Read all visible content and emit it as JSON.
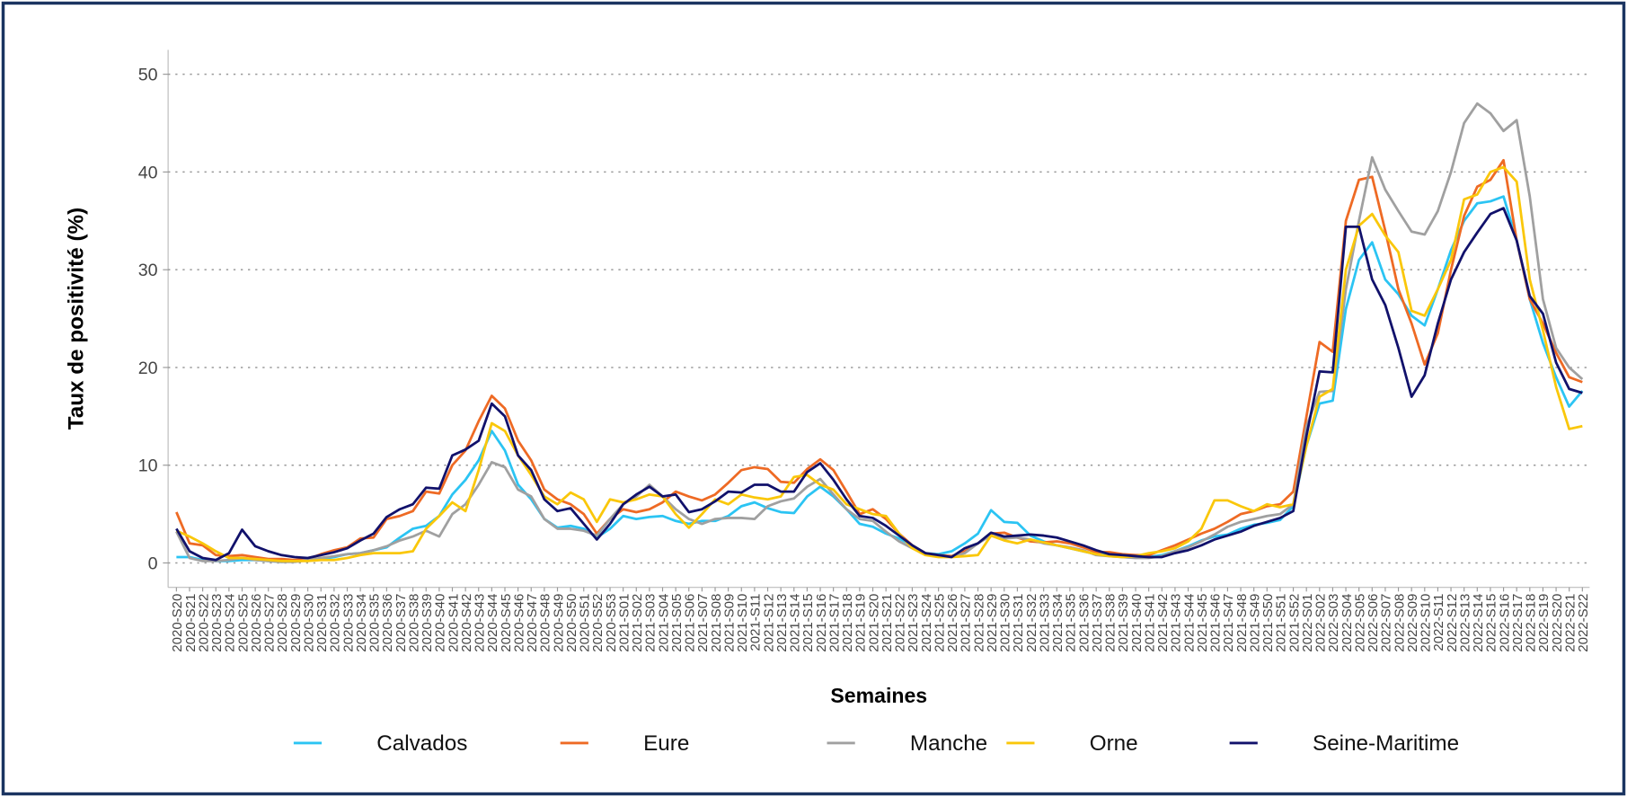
{
  "chart_data": {
    "type": "line",
    "y_label": "Taux de positivité (%)",
    "x_label": "Semaines",
    "categories": [
      "2020-S20",
      "2020-S21",
      "2020-S22",
      "2020-S23",
      "2020-S24",
      "2020-S25",
      "2020-S26",
      "2020-S27",
      "2020-S28",
      "2020-S29",
      "2020-S30",
      "2020-S31",
      "2020-S32",
      "2020-S33",
      "2020-S34",
      "2020-S35",
      "2020-S36",
      "2020-S37",
      "2020-S38",
      "2020-S39",
      "2020-S40",
      "2020-S41",
      "2020-S42",
      "2020-S43",
      "2020-S44",
      "2020-S45",
      "2020-S46",
      "2020-S47",
      "2020-S48",
      "2020-S49",
      "2020-S50",
      "2020-S51",
      "2020-S52",
      "2020-S53",
      "2021-S01",
      "2021-S02",
      "2021-S03",
      "2021-S04",
      "2021-S05",
      "2021-S06",
      "2021-S07",
      "2021-S08",
      "2021-S09",
      "2021-S10",
      "2021-S11",
      "2021-S12",
      "2021-S13",
      "2021-S14",
      "2021-S15",
      "2021-S16",
      "2021-S17",
      "2021-S18",
      "2021-S19",
      "2021-S20",
      "2021-S21",
      "2021-S22",
      "2021-S23",
      "2021-S24",
      "2021-S25",
      "2021-S26",
      "2021-S27",
      "2021-S28",
      "2021-S29",
      "2021-S30",
      "2021-S31",
      "2021-S32",
      "2021-S33",
      "2021-S34",
      "2021-S35",
      "2021-S36",
      "2021-S37",
      "2021-S38",
      "2021-S39",
      "2021-S40",
      "2021-S41",
      "2021-S42",
      "2021-S43",
      "2021-S44",
      "2021-S45",
      "2021-S46",
      "2021-S47",
      "2021-S48",
      "2021-S49",
      "2021-S50",
      "2021-S51",
      "2021-S52",
      "2022-S01",
      "2022-S02",
      "2022-S03",
      "2022-S04",
      "2022-S05",
      "2022-S06",
      "2022-S07",
      "2022-S08",
      "2022-S09",
      "2022-S10",
      "2022-S11",
      "2022-S12",
      "2022-S13",
      "2022-S14",
      "2022-S15",
      "2022-S16",
      "2022-S17",
      "2022-S18",
      "2022-S19",
      "2022-S20",
      "2022-S21",
      "2022-S22"
    ],
    "series": [
      {
        "name": "Calvados",
        "color": "#2bc4f3",
        "values": [
          0.6,
          0.6,
          0.3,
          0.2,
          0.2,
          0.3,
          0.3,
          0.2,
          0.1,
          0.2,
          0.3,
          0.4,
          0.6,
          0.9,
          1.0,
          1.3,
          1.6,
          2.6,
          3.5,
          3.8,
          4.8,
          7.0,
          8.5,
          10.5,
          13.5,
          11.5,
          8.0,
          6.5,
          4.5,
          3.6,
          3.8,
          3.5,
          2.6,
          3.5,
          4.8,
          4.5,
          4.7,
          4.8,
          4.3,
          4.0,
          4.3,
          4.3,
          4.8,
          5.8,
          6.2,
          5.6,
          5.2,
          5.1,
          6.8,
          7.8,
          6.8,
          5.5,
          4.0,
          3.7,
          3.0,
          2.5,
          1.8,
          1.0,
          0.9,
          1.2,
          2.0,
          3.0,
          5.4,
          4.2,
          4.1,
          2.8,
          2.2,
          1.8,
          1.5,
          1.2,
          0.9,
          0.8,
          0.7,
          0.6,
          0.6,
          0.8,
          1.2,
          1.7,
          2.3,
          2.7,
          2.9,
          3.5,
          3.9,
          4.1,
          4.4,
          5.8,
          12.0,
          16.3,
          16.6,
          26.0,
          31.0,
          32.8,
          29.0,
          27.5,
          25.3,
          24.3,
          28.0,
          32.0,
          35.0,
          36.8,
          37.0,
          37.5,
          33.0,
          27.0,
          22.5,
          19.0,
          16.0,
          17.6
        ]
      },
      {
        "name": "Eure",
        "color": "#ee6a24",
        "values": [
          5.2,
          2.0,
          1.8,
          0.8,
          0.7,
          0.8,
          0.6,
          0.4,
          0.4,
          0.3,
          0.4,
          0.9,
          1.3,
          1.6,
          2.5,
          2.6,
          4.5,
          4.8,
          5.3,
          7.3,
          7.1,
          10.0,
          11.5,
          14.5,
          17.1,
          15.8,
          12.5,
          10.5,
          7.5,
          6.5,
          6.0,
          5.0,
          3.0,
          4.5,
          5.5,
          5.2,
          5.5,
          6.2,
          7.3,
          6.8,
          6.4,
          7.0,
          8.2,
          9.5,
          9.8,
          9.6,
          8.3,
          8.2,
          9.6,
          10.6,
          9.5,
          7.3,
          5.0,
          5.5,
          4.5,
          3.0,
          1.8,
          1.0,
          0.8,
          0.7,
          1.2,
          2.0,
          3.0,
          3.1,
          2.6,
          2.2,
          2.1,
          2.2,
          2.0,
          1.6,
          1.1,
          1.1,
          0.9,
          0.8,
          0.8,
          1.3,
          1.8,
          2.4,
          3.0,
          3.5,
          4.2,
          5.0,
          5.3,
          5.8,
          6.0,
          7.3,
          15.0,
          22.6,
          21.6,
          35.0,
          39.2,
          39.5,
          34.0,
          28.0,
          24.5,
          20.3,
          23.5,
          30.0,
          35.5,
          38.5,
          39.2,
          41.2,
          33.0,
          27.0,
          24.5,
          21.5,
          19.0,
          18.5
        ]
      },
      {
        "name": "Manche",
        "color": "#a0a0a0",
        "values": [
          3.2,
          0.5,
          0.2,
          0.2,
          0.3,
          0.5,
          0.3,
          0.2,
          0.1,
          0.1,
          0.3,
          0.5,
          0.7,
          0.9,
          1.0,
          1.3,
          1.7,
          2.3,
          2.7,
          3.3,
          2.7,
          5.0,
          6.0,
          8.0,
          10.3,
          9.8,
          7.5,
          6.8,
          4.5,
          3.5,
          3.5,
          3.3,
          2.8,
          4.5,
          6.0,
          6.8,
          8.0,
          6.8,
          5.5,
          4.5,
          4.0,
          4.5,
          4.6,
          4.6,
          4.5,
          5.8,
          6.3,
          6.6,
          7.8,
          8.6,
          7.0,
          5.5,
          4.5,
          4.3,
          3.2,
          2.2,
          1.5,
          0.9,
          0.7,
          0.6,
          1.0,
          2.0,
          2.8,
          2.5,
          2.6,
          2.4,
          2.0,
          1.8,
          1.6,
          1.3,
          0.8,
          0.7,
          0.6,
          0.5,
          0.5,
          0.7,
          1.2,
          1.6,
          2.2,
          2.9,
          3.7,
          4.2,
          4.5,
          4.8,
          5.0,
          6.0,
          14.0,
          17.5,
          17.6,
          28.0,
          35.0,
          41.5,
          38.2,
          36.0,
          33.9,
          33.6,
          36.0,
          40.0,
          45.0,
          47.0,
          46.0,
          44.2,
          45.3,
          37.5,
          27.0,
          22.0,
          20.0,
          18.8
        ]
      },
      {
        "name": "Orne",
        "color": "#fac70a",
        "values": [
          3.3,
          2.7,
          2.0,
          1.2,
          0.5,
          0.5,
          0.4,
          0.3,
          0.2,
          0.2,
          0.2,
          0.3,
          0.3,
          0.5,
          0.8,
          1.0,
          1.0,
          1.0,
          1.2,
          3.5,
          4.8,
          6.2,
          5.3,
          9.5,
          14.3,
          13.5,
          11.0,
          9.0,
          6.8,
          6.0,
          7.2,
          6.5,
          4.2,
          6.5,
          6.2,
          6.5,
          7.0,
          6.8,
          5.0,
          3.6,
          5.0,
          6.5,
          6.0,
          7.0,
          6.7,
          6.5,
          6.8,
          8.8,
          9.0,
          8.0,
          7.5,
          6.0,
          5.5,
          5.0,
          4.8,
          3.0,
          1.5,
          0.8,
          0.6,
          0.6,
          0.7,
          0.8,
          2.8,
          2.3,
          2.0,
          2.4,
          2.1,
          1.8,
          1.5,
          1.2,
          0.9,
          0.7,
          0.6,
          0.7,
          1.0,
          1.2,
          1.5,
          2.2,
          3.5,
          6.4,
          6.4,
          5.8,
          5.3,
          6.0,
          5.7,
          6.0,
          12.0,
          17.0,
          17.8,
          30.0,
          34.5,
          35.7,
          33.5,
          31.8,
          25.8,
          25.3,
          28.0,
          31.0,
          37.2,
          37.7,
          40.0,
          40.5,
          39.0,
          29.0,
          23.8,
          18.0,
          13.7,
          14.0
        ]
      },
      {
        "name": "Seine-Maritime",
        "color": "#11116b",
        "values": [
          3.5,
          1.2,
          0.5,
          0.3,
          1.0,
          3.4,
          1.7,
          1.2,
          0.8,
          0.6,
          0.5,
          0.8,
          1.1,
          1.5,
          2.3,
          3.0,
          4.7,
          5.5,
          6.0,
          7.7,
          7.6,
          11.0,
          11.6,
          12.5,
          16.3,
          15.0,
          11.0,
          9.5,
          6.5,
          5.3,
          5.6,
          4.0,
          2.4,
          4.0,
          6.0,
          7.0,
          7.8,
          6.8,
          7.0,
          5.2,
          5.5,
          6.3,
          7.3,
          7.2,
          8.0,
          8.0,
          7.3,
          7.3,
          9.3,
          10.2,
          8.5,
          6.5,
          4.8,
          4.6,
          3.8,
          2.8,
          1.8,
          1.0,
          0.8,
          0.6,
          1.5,
          2.0,
          3.1,
          2.7,
          2.8,
          2.9,
          2.8,
          2.6,
          2.2,
          1.8,
          1.3,
          0.9,
          0.8,
          0.7,
          0.6,
          0.6,
          1.0,
          1.3,
          1.8,
          2.4,
          2.8,
          3.2,
          3.8,
          4.2,
          4.6,
          5.3,
          13.0,
          19.6,
          19.5,
          34.4,
          34.4,
          29.0,
          26.4,
          22.0,
          17.0,
          19.2,
          24.5,
          29.0,
          31.8,
          33.8,
          35.7,
          36.3,
          33.0,
          27.3,
          25.5,
          20.5,
          17.8,
          17.4
        ]
      }
    ],
    "ylim": [
      -2.5,
      52.5
    ],
    "yticks": [
      0,
      10,
      20,
      30,
      40,
      50
    ],
    "grid": true,
    "legend": "bottom"
  }
}
